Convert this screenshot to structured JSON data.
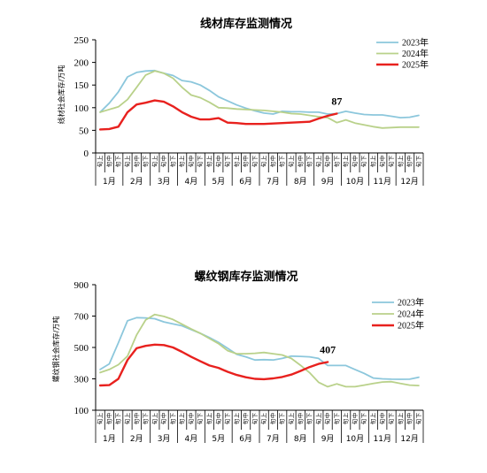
{
  "chart_data": [
    {
      "type": "line",
      "title": "线材库存监测情况",
      "ylabel": "线材社会库存/万吨",
      "ylim": [
        0,
        250
      ],
      "yticks": [
        0,
        50,
        100,
        150,
        200,
        250
      ],
      "grid": false,
      "legend_position": "top-right",
      "xlabel": "",
      "subperiods": [
        "上旬",
        "中旬",
        "下旬"
      ],
      "months": [
        "1月",
        "2月",
        "3月",
        "4月",
        "5月",
        "6月",
        "7月",
        "8月",
        "9月",
        "10月",
        "11月",
        "12月"
      ],
      "series": [
        {
          "name": "2023年",
          "color": "#8cc7dc",
          "values": [
            90,
            110,
            135,
            168,
            178,
            181,
            182,
            176,
            171,
            160,
            157,
            150,
            138,
            124,
            115,
            106,
            99,
            93,
            88,
            86,
            92,
            91,
            91,
            90,
            90,
            86,
            87,
            92,
            88,
            85,
            84,
            84,
            81,
            78,
            79,
            83
          ]
        },
        {
          "name": "2024年",
          "color": "#b9d18a",
          "values": [
            90,
            96,
            102,
            118,
            145,
            172,
            181,
            176,
            165,
            145,
            128,
            122,
            112,
            100,
            99,
            97,
            96,
            95,
            94,
            92,
            90,
            87,
            86,
            83,
            80,
            78,
            67,
            73,
            66,
            62,
            58,
            55,
            56,
            57,
            57,
            57
          ]
        },
        {
          "name": "2025年",
          "color": "#e8211e",
          "values": [
            52,
            53,
            58,
            90,
            107,
            111,
            116,
            113,
            103,
            90,
            80,
            74,
            74,
            77,
            67,
            66,
            64,
            64,
            64,
            65,
            66,
            67,
            68,
            69,
            76,
            82,
            87
          ]
        }
      ],
      "annotations": [
        {
          "text": "87",
          "series": "2025年",
          "index": 26
        }
      ]
    },
    {
      "type": "line",
      "title": "螺纹钢库存监测情况",
      "ylabel": "螺纹钢社会库存/万吨",
      "ylim": [
        100,
        900
      ],
      "yticks": [
        100,
        300,
        500,
        700,
        900
      ],
      "grid": false,
      "legend_position": "top-right",
      "xlabel": "",
      "subperiods": [
        "上旬",
        "中旬",
        "下旬"
      ],
      "months": [
        "1月",
        "2月",
        "3月",
        "4月",
        "5月",
        "6月",
        "7月",
        "8月",
        "9月",
        "10月",
        "11月",
        "12月"
      ],
      "series": [
        {
          "name": "2023年",
          "color": "#8cc7dc",
          "values": [
            360,
            395,
            530,
            670,
            690,
            688,
            683,
            663,
            650,
            638,
            614,
            590,
            563,
            532,
            495,
            456,
            440,
            420,
            422,
            420,
            430,
            445,
            443,
            440,
            430,
            385,
            385,
            385,
            360,
            335,
            305,
            300,
            298,
            297,
            298,
            310
          ]
        },
        {
          "name": "2024年",
          "color": "#b9d18a",
          "values": [
            340,
            360,
            390,
            445,
            580,
            675,
            710,
            698,
            678,
            648,
            618,
            590,
            557,
            524,
            480,
            460,
            460,
            463,
            468,
            460,
            452,
            430,
            387,
            340,
            278,
            250,
            268,
            250,
            250,
            260,
            270,
            280,
            282,
            270,
            260,
            257
          ]
        },
        {
          "name": "2025年",
          "color": "#e8211e",
          "values": [
            258,
            260,
            300,
            420,
            495,
            510,
            518,
            515,
            500,
            472,
            440,
            412,
            385,
            370,
            345,
            325,
            310,
            300,
            298,
            303,
            312,
            327,
            350,
            375,
            395,
            407
          ]
        }
      ],
      "annotations": [
        {
          "text": "407",
          "series": "2025年",
          "index": 25
        }
      ]
    }
  ]
}
